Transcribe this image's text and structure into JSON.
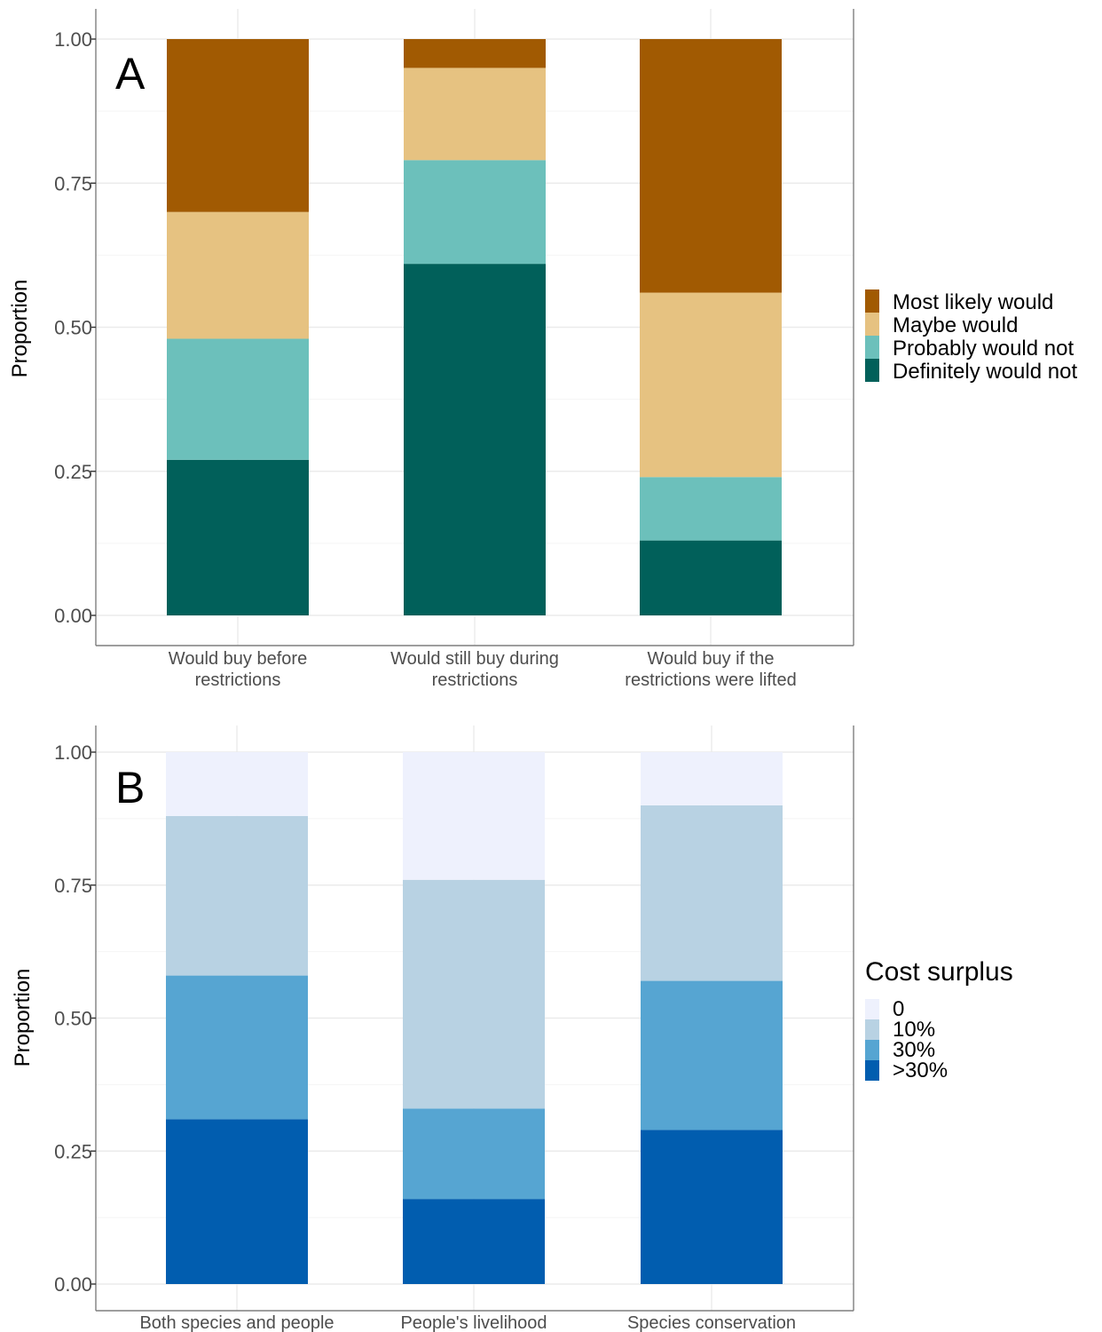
{
  "chart_data": [
    {
      "type": "bar",
      "stacked": true,
      "panel_label": "A",
      "ylabel": "Proportion",
      "xlabel": "",
      "ylim": [
        0,
        1
      ],
      "yticks": [
        "0.00",
        "0.25",
        "0.50",
        "0.75",
        "1.00"
      ],
      "grid": true,
      "legend_position": "right",
      "legend_title": "",
      "categories": [
        [
          "Would buy before",
          "restrictions"
        ],
        [
          "Would still buy during",
          "restrictions"
        ],
        [
          "Would buy if the",
          "restrictions were lifted"
        ]
      ],
      "series": [
        {
          "name": "Definitely would not",
          "color": "#01605a",
          "values": [
            0.27,
            0.61,
            0.13
          ]
        },
        {
          "name": "Probably would not",
          "color": "#6cc0bb",
          "values": [
            0.21,
            0.18,
            0.11
          ]
        },
        {
          "name": "Maybe would",
          "color": "#e6c281",
          "values": [
            0.22,
            0.16,
            0.32
          ]
        },
        {
          "name": "Most likely would",
          "color": "#a15a02",
          "values": [
            0.3,
            0.05,
            0.44
          ]
        }
      ],
      "legend_order": [
        "Most likely would",
        "Maybe would",
        "Probably would not",
        "Definitely would not"
      ]
    },
    {
      "type": "bar",
      "stacked": true,
      "panel_label": "B",
      "ylabel": "Proportion",
      "xlabel": "",
      "ylim": [
        0,
        1
      ],
      "yticks": [
        "0.00",
        "0.25",
        "0.50",
        "0.75",
        "1.00"
      ],
      "grid": true,
      "legend_position": "right",
      "legend_title": "Cost surplus",
      "categories": [
        [
          "Both species and people"
        ],
        [
          "People's livelihood"
        ],
        [
          "Species conservation"
        ]
      ],
      "series": [
        {
          "name": ">30%",
          "color": "#015daf",
          "values": [
            0.31,
            0.16,
            0.29
          ]
        },
        {
          "name": "30%",
          "color": "#56a5d2",
          "values": [
            0.27,
            0.17,
            0.28
          ]
        },
        {
          "name": "10%",
          "color": "#b8d2e3",
          "values": [
            0.3,
            0.43,
            0.33
          ]
        },
        {
          "name": "0",
          "color": "#eef1fd",
          "values": [
            0.12,
            0.24,
            0.1
          ]
        }
      ],
      "legend_order": [
        "0",
        "10%",
        "30%",
        ">30%"
      ]
    }
  ]
}
